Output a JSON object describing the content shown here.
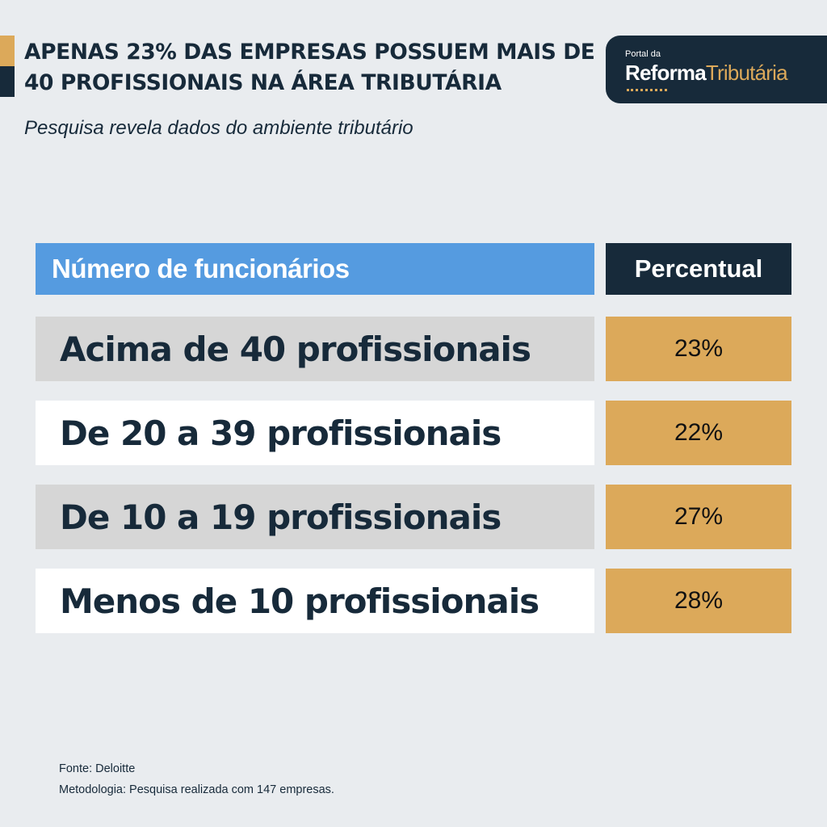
{
  "title": "APENAS 23% DAS EMPRESAS POSSUEM MAIS DE 40 PROFISSIONAIS NA ÁREA TRIBUTÁRIA",
  "subtitle": "Pesquisa revela dados do ambiente tributário",
  "logo": {
    "small": "Portal da",
    "main_bold": "Reforma",
    "main_light": "Tributária"
  },
  "colors": {
    "navy": "#172a3a",
    "gold": "#dca95a",
    "blue": "#559be0",
    "row_gray": "#d6d6d6",
    "background": "#e9ecef"
  },
  "chart_data": {
    "type": "table",
    "columns": [
      "Número de funcionários",
      "Percentual"
    ],
    "rows": [
      {
        "label": "Acima de 40 profissionais",
        "value": "23%"
      },
      {
        "label": "De 20 a 39 profissionais",
        "value": "22%"
      },
      {
        "label": "De 10 a 19 profissionais",
        "value": "27%"
      },
      {
        "label": "Menos de 10 profissionais",
        "value": "28%"
      }
    ]
  },
  "footer": {
    "source": "Fonte: Deloitte",
    "methodology": "Metodologia: Pesquisa realizada com 147 empresas."
  }
}
